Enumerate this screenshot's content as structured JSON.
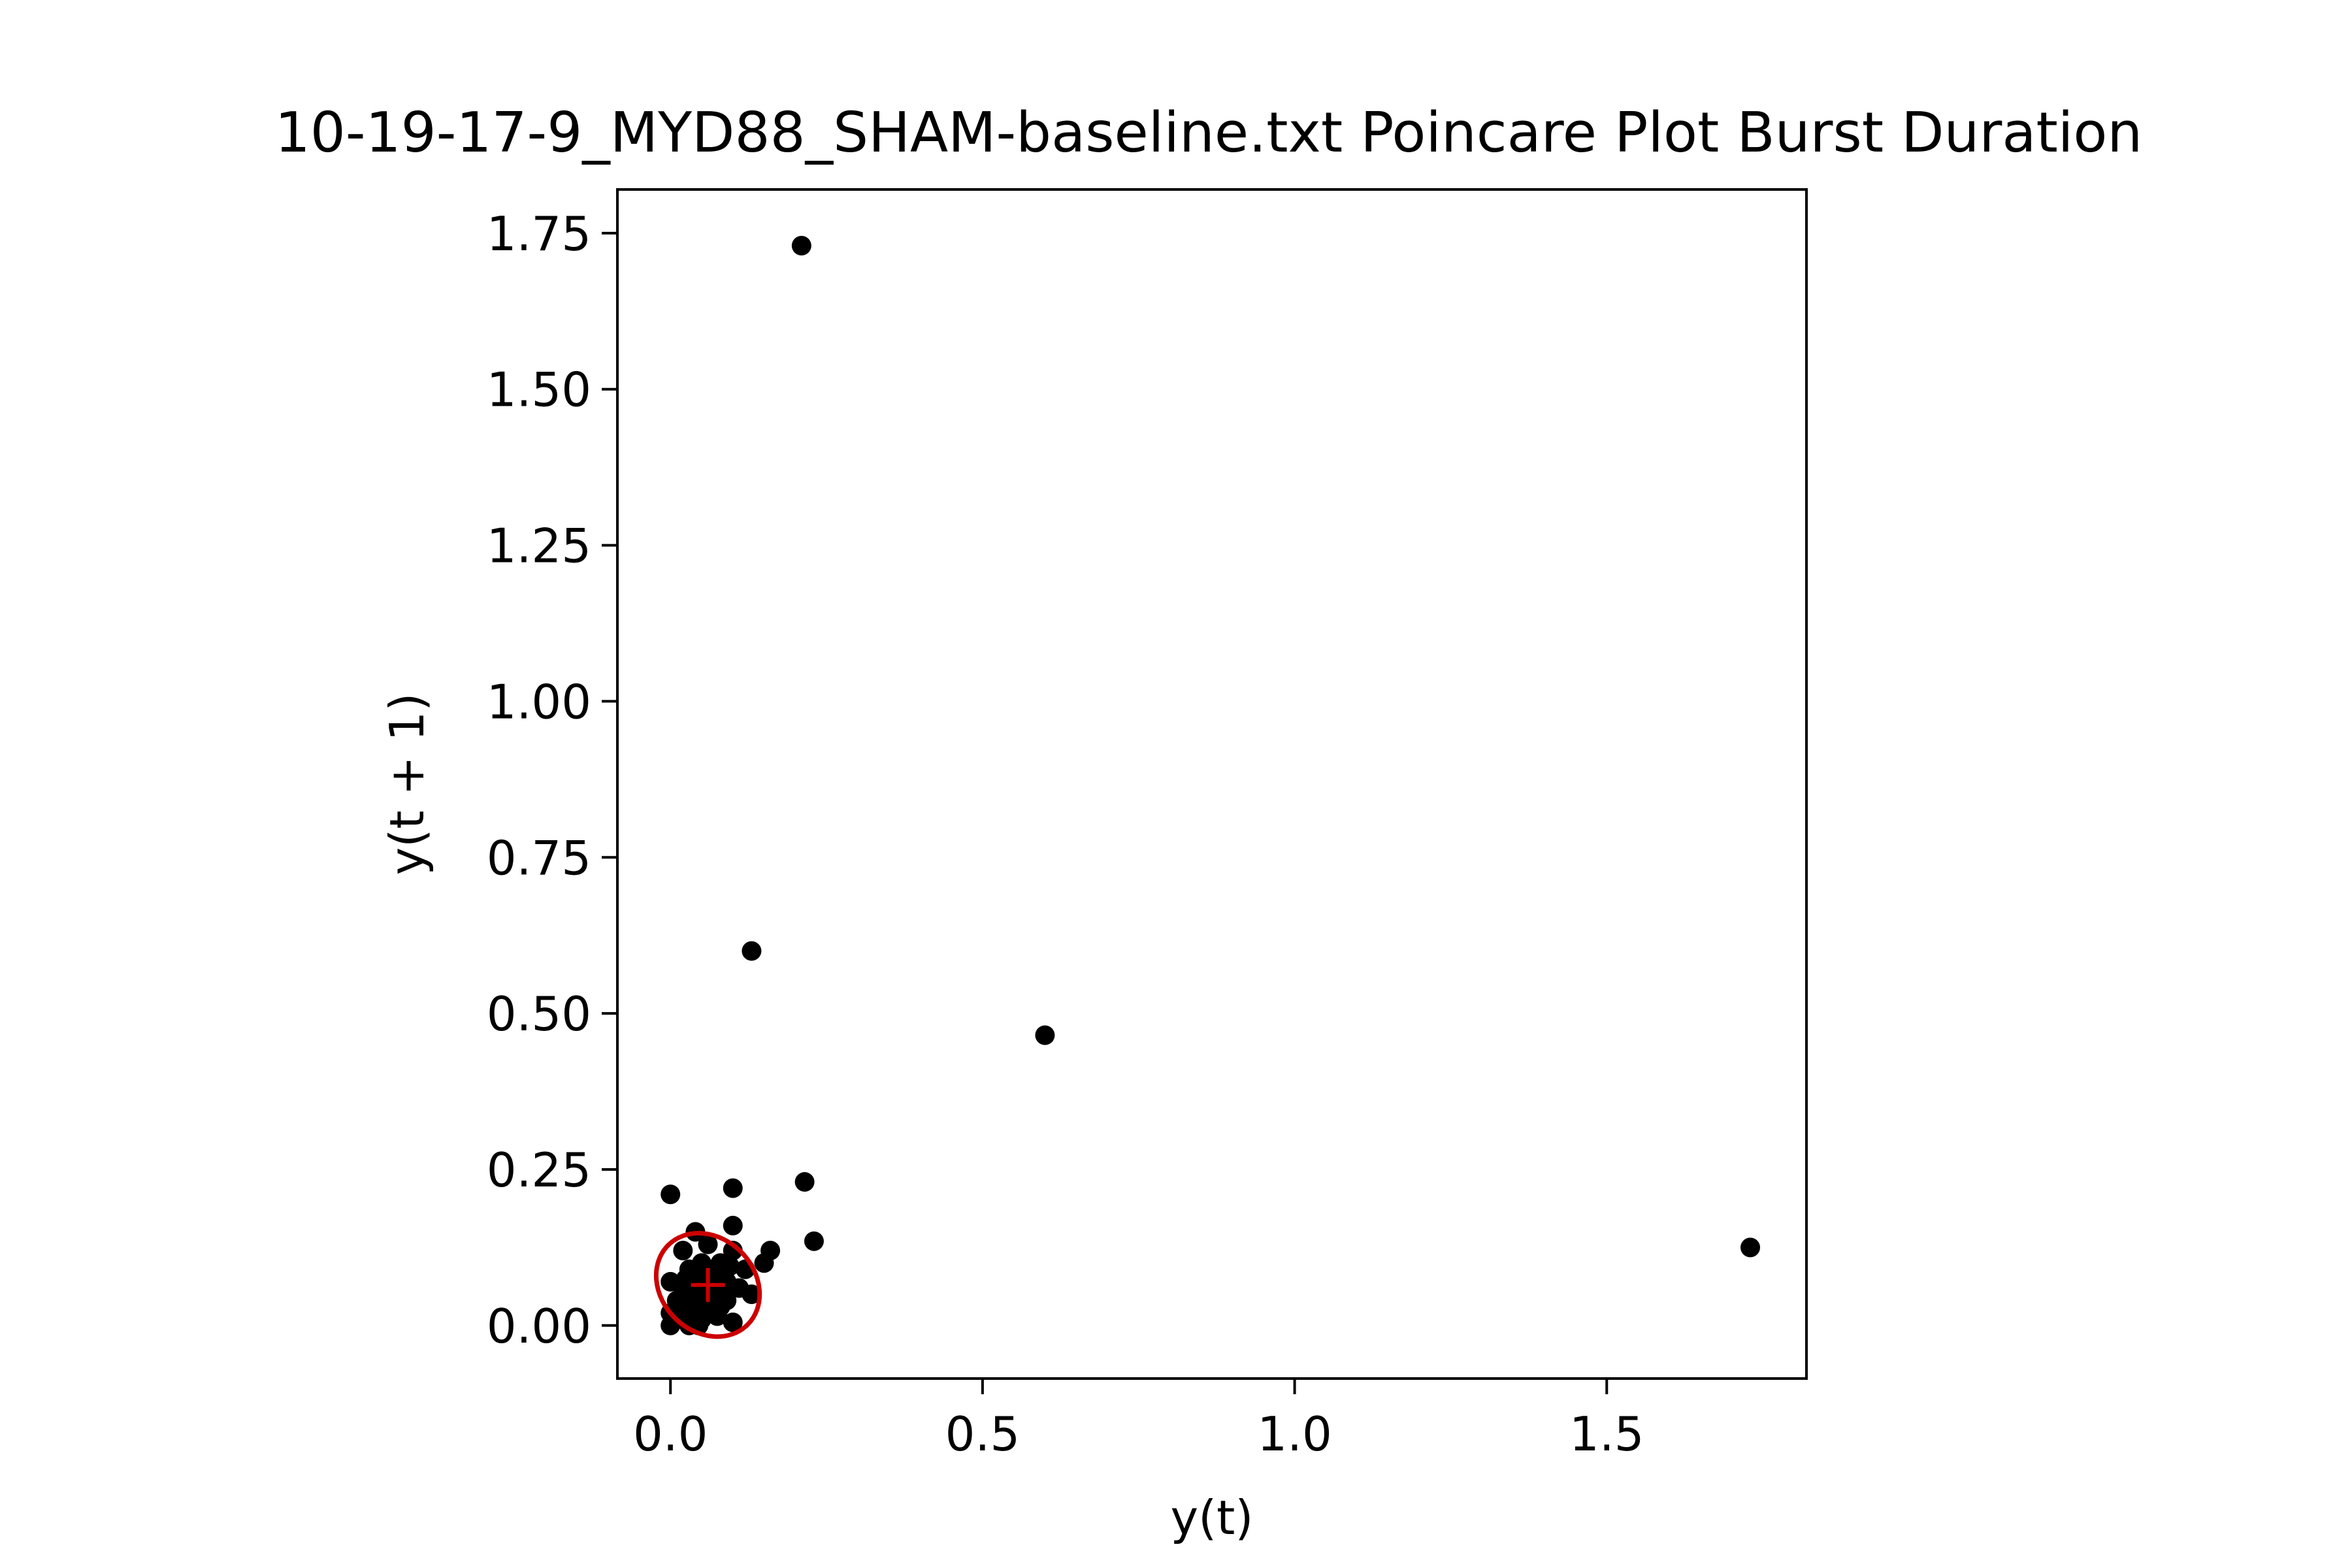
{
  "chart_data": {
    "type": "scatter",
    "title": "10-19-17-9_MYD88_SHAM-baseline.txt Poincare Plot Burst Duration",
    "xlabel": "y(t)",
    "ylabel": "y(t + 1)",
    "xlim": [
      -0.085,
      1.82
    ],
    "ylim": [
      -0.085,
      1.82
    ],
    "grid": false,
    "x_ticks": [
      0.0,
      0.5,
      1.0,
      1.5
    ],
    "x_tick_labels": [
      "0.0",
      "0.5",
      "1.0",
      "1.5"
    ],
    "y_ticks": [
      0.0,
      0.25,
      0.5,
      0.75,
      1.0,
      1.25,
      1.5,
      1.75
    ],
    "y_tick_labels": [
      "0.00",
      "0.25",
      "0.50",
      "0.75",
      "1.00",
      "1.25",
      "1.50",
      "1.75"
    ],
    "point_color": "#000000",
    "series": [
      {
        "values": [
          [
            0.21,
            1.73
          ],
          [
            0.13,
            0.6
          ],
          [
            0.6,
            0.465
          ],
          [
            1.73,
            0.125
          ],
          [
            0.215,
            0.23
          ],
          [
            0.23,
            0.135
          ],
          [
            0.1,
            0.22
          ],
          [
            0.0,
            0.21
          ],
          [
            0.1,
            0.16
          ],
          [
            0.04,
            0.15
          ],
          [
            0.16,
            0.12
          ],
          [
            0.1,
            0.12
          ],
          [
            0.15,
            0.1
          ],
          [
            0.12,
            0.09
          ],
          [
            0.13,
            0.05
          ],
          [
            0.1,
            0.005
          ],
          [
            0.05,
            0.1
          ],
          [
            0.02,
            0.12
          ],
          [
            0.06,
            0.13
          ],
          [
            0.03,
            0.09
          ],
          [
            0.0,
            0.07
          ],
          [
            0.01,
            0.04
          ],
          [
            0.02,
            0.02
          ],
          [
            0.03,
            0.0
          ],
          [
            0.04,
            0.03
          ],
          [
            0.05,
            0.06
          ],
          [
            0.06,
            0.02
          ],
          [
            0.07,
            0.05
          ],
          [
            0.08,
            0.03
          ],
          [
            0.09,
            0.07
          ],
          [
            0.02,
            0.06
          ],
          [
            0.04,
            0.08
          ],
          [
            0.06,
            0.09
          ],
          [
            0.08,
            0.1
          ],
          [
            0.01,
            0.01
          ],
          [
            0.03,
            0.05
          ],
          [
            0.05,
            0.01
          ],
          [
            0.07,
            0.08
          ],
          [
            0.09,
            0.04
          ],
          [
            0.11,
            0.06
          ],
          [
            0.0,
            0.0
          ],
          [
            0.015,
            0.03
          ],
          [
            0.045,
            0.045
          ],
          [
            0.065,
            0.065
          ],
          [
            0.035,
            0.02
          ],
          [
            0.055,
            0.035
          ],
          [
            0.085,
            0.055
          ],
          [
            0.025,
            0.075
          ],
          [
            0.045,
            0.0
          ],
          [
            0.0,
            0.02
          ],
          [
            0.075,
            0.015
          ],
          [
            0.095,
            0.095
          ]
        ]
      }
    ],
    "ellipse": {
      "center": [
        0.06,
        0.065
      ],
      "rx": 0.075,
      "ry": 0.09,
      "rotation_deg": 45,
      "color": "#cc0000"
    },
    "center_marker": {
      "x": 0.06,
      "y": 0.065,
      "symbol": "+",
      "color": "#cc0000"
    }
  }
}
